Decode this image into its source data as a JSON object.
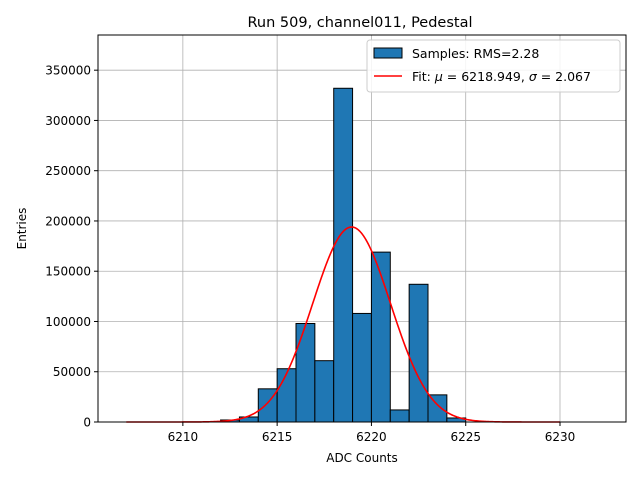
{
  "chart_data": {
    "type": "bar",
    "title": "Run 509, channel011, Pedestal",
    "xlabel": "ADC Counts",
    "ylabel": "Entries",
    "xlim": [
      6205.5,
      6233.5
    ],
    "ylim": [
      0,
      385000
    ],
    "grid": true,
    "legend_position": "top-right",
    "xticks": [
      6210,
      6215,
      6220,
      6225,
      6230
    ],
    "yticks": [
      0,
      50000,
      100000,
      150000,
      200000,
      250000,
      300000,
      350000
    ],
    "series": [
      {
        "name": "Samples: RMS=2.28",
        "kind": "histogram",
        "color": "#1f77b4",
        "edgecolor": "#000000",
        "bin_width": 1,
        "bin_starts": [
          6212,
          6213,
          6214,
          6215,
          6216,
          6217,
          6218,
          6219,
          6220,
          6221,
          6222,
          6223,
          6224
        ],
        "values": [
          2000,
          5000,
          33000,
          53000,
          98000,
          61000,
          332000,
          108000,
          169000,
          12000,
          137000,
          27000,
          4000
        ]
      },
      {
        "name": "Fit: μ = 6218.949, σ = 2.067",
        "legend_parts": {
          "prefix": "Fit: ",
          "mu_symbol": "μ",
          "mu_text": " = 6218.949, ",
          "sigma_symbol": "σ",
          "sigma_text": " = 2.067"
        },
        "kind": "gaussian_fit",
        "color": "#ff0000",
        "mu": 6218.949,
        "sigma": 2.067,
        "amplitude": 194000,
        "x_range": [
          6207,
          6230
        ]
      }
    ]
  }
}
